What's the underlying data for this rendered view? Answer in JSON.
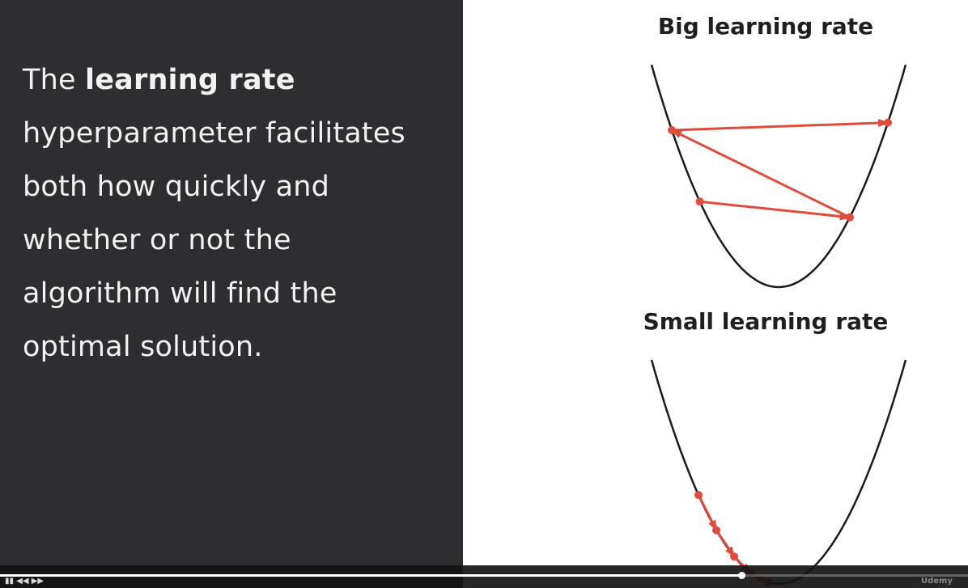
{
  "explanation": {
    "prefix": "The ",
    "emphasis": "learning rate",
    "lines": [
      "hyperparameter facilitates",
      "both how quickly and",
      "whether or not the",
      "algorithm will find the",
      "optimal solution."
    ]
  },
  "diagrams": {
    "big": {
      "title": "Big learning rate",
      "steps": [
        {
          "x": -0.62,
          "label_order": 1
        },
        {
          "x": 0.56,
          "label_order": 2
        },
        {
          "x": -0.84,
          "label_order": 3
        },
        {
          "x": 0.86,
          "label_order": 4
        }
      ]
    },
    "small": {
      "title": "Small learning rate",
      "steps": [
        {
          "x": -0.63,
          "label_order": 1
        },
        {
          "x": -0.49,
          "label_order": 2
        },
        {
          "x": -0.35,
          "label_order": 3
        },
        {
          "x": -0.22,
          "label_order": 4
        },
        {
          "x": -0.08,
          "label_order": 5
        }
      ]
    }
  },
  "colors": {
    "panel_dark": "#2e2e30",
    "curve": "#1a1a1a",
    "arrow": "#e14b3b"
  },
  "player": {
    "progress_fraction": 0.766,
    "controls_text": "▮▮ ◀◀ ▶▶",
    "watermark_text": "Udemy"
  }
}
